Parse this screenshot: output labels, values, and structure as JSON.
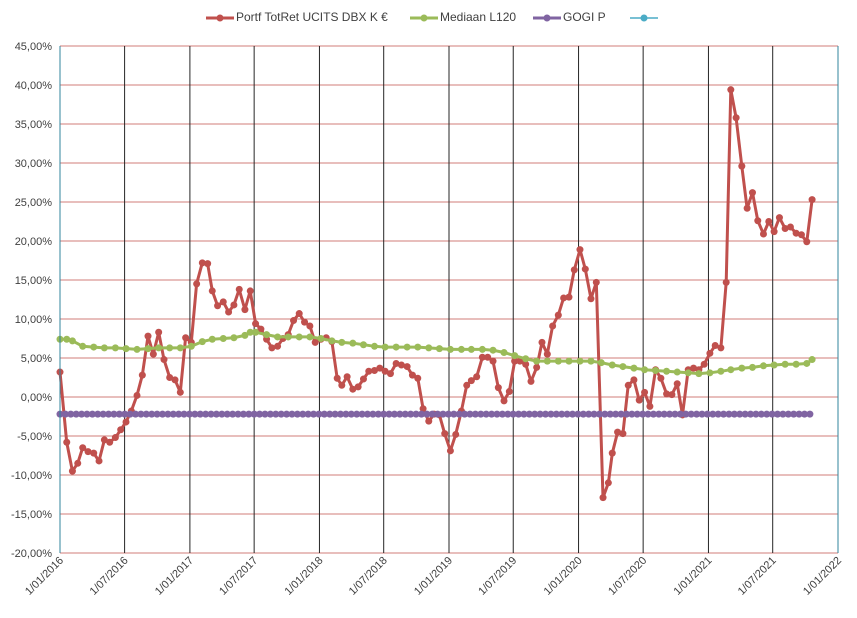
{
  "chart_data": {
    "type": "line",
    "legend_position": "top",
    "ylim": [
      -20,
      45
    ],
    "y_ticks": [
      "-20,00%",
      "-15,00%",
      "-10,00%",
      "-5,00%",
      "0,00%",
      "5,00%",
      "10,00%",
      "15,00%",
      "20,00%",
      "25,00%",
      "30,00%",
      "35,00%",
      "40,00%",
      "45,00%"
    ],
    "x_range": [
      "2016-01-01",
      "2022-01-01"
    ],
    "x_ticks": [
      "1/01/2016",
      "1/07/2016",
      "1/01/2017",
      "1/07/2017",
      "1/01/2018",
      "1/07/2018",
      "1/01/2019",
      "1/07/2019",
      "1/01/2020",
      "1/07/2020",
      "1/01/2021",
      "1/07/2021",
      "1/01/2022"
    ],
    "grid": true,
    "series": [
      {
        "name": "Portf TotRet UCITS DBX K €",
        "color": "#c0504d",
        "points": [
          [
            "2016-01-01",
            3.2
          ],
          [
            "2016-01-20",
            -5.8
          ],
          [
            "2016-02-05",
            -9.5
          ],
          [
            "2016-02-20",
            -8.5
          ],
          [
            "2016-03-05",
            -6.5
          ],
          [
            "2016-03-20",
            -7.0
          ],
          [
            "2016-04-05",
            -7.2
          ],
          [
            "2016-04-20",
            -8.2
          ],
          [
            "2016-05-05",
            -5.5
          ],
          [
            "2016-05-20",
            -5.8
          ],
          [
            "2016-06-05",
            -5.2
          ],
          [
            "2016-06-20",
            -4.2
          ],
          [
            "2016-07-05",
            -3.2
          ],
          [
            "2016-07-20",
            -1.8
          ],
          [
            "2016-08-05",
            0.2
          ],
          [
            "2016-08-20",
            2.8
          ],
          [
            "2016-09-05",
            7.8
          ],
          [
            "2016-09-20",
            5.5
          ],
          [
            "2016-10-05",
            8.3
          ],
          [
            "2016-10-20",
            4.8
          ],
          [
            "2016-11-05",
            2.5
          ],
          [
            "2016-11-20",
            2.2
          ],
          [
            "2016-12-05",
            0.6
          ],
          [
            "2016-12-20",
            7.6
          ],
          [
            "2017-01-05",
            7.0
          ],
          [
            "2017-01-20",
            14.5
          ],
          [
            "2017-02-05",
            17.2
          ],
          [
            "2017-02-20",
            17.1
          ],
          [
            "2017-03-05",
            13.6
          ],
          [
            "2017-03-20",
            11.7
          ],
          [
            "2017-04-05",
            12.2
          ],
          [
            "2017-04-20",
            10.9
          ],
          [
            "2017-05-05",
            11.8
          ],
          [
            "2017-05-20",
            13.8
          ],
          [
            "2017-06-05",
            11.2
          ],
          [
            "2017-06-20",
            13.6
          ],
          [
            "2017-07-05",
            9.4
          ],
          [
            "2017-07-20",
            8.7
          ],
          [
            "2017-08-05",
            7.4
          ],
          [
            "2017-08-20",
            6.3
          ],
          [
            "2017-09-05",
            6.5
          ],
          [
            "2017-09-20",
            7.5
          ],
          [
            "2017-10-05",
            8.0
          ],
          [
            "2017-10-20",
            9.8
          ],
          [
            "2017-11-05",
            10.7
          ],
          [
            "2017-11-20",
            9.6
          ],
          [
            "2017-12-05",
            9.1
          ],
          [
            "2017-12-20",
            7.0
          ],
          [
            "2018-01-05",
            7.4
          ],
          [
            "2018-01-20",
            7.6
          ],
          [
            "2018-02-05",
            7.1
          ],
          [
            "2018-02-20",
            2.4
          ],
          [
            "2018-03-05",
            1.5
          ],
          [
            "2018-03-20",
            2.6
          ],
          [
            "2018-04-05",
            1.0
          ],
          [
            "2018-04-20",
            1.3
          ],
          [
            "2018-05-05",
            2.3
          ],
          [
            "2018-05-20",
            3.3
          ],
          [
            "2018-06-05",
            3.4
          ],
          [
            "2018-06-20",
            3.7
          ],
          [
            "2018-07-05",
            3.3
          ],
          [
            "2018-07-20",
            3.0
          ],
          [
            "2018-08-05",
            4.3
          ],
          [
            "2018-08-20",
            4.1
          ],
          [
            "2018-09-05",
            3.9
          ],
          [
            "2018-09-20",
            2.8
          ],
          [
            "2018-10-05",
            2.4
          ],
          [
            "2018-10-20",
            -1.5
          ],
          [
            "2018-11-05",
            -3.1
          ],
          [
            "2018-11-20",
            -2.2
          ],
          [
            "2018-12-05",
            -2.3
          ],
          [
            "2018-12-20",
            -4.7
          ],
          [
            "2019-01-05",
            -6.9
          ],
          [
            "2019-01-20",
            -4.8
          ],
          [
            "2019-02-05",
            -1.8
          ],
          [
            "2019-02-20",
            1.5
          ],
          [
            "2019-03-05",
            2.1
          ],
          [
            "2019-03-20",
            2.6
          ],
          [
            "2019-04-05",
            5.1
          ],
          [
            "2019-04-20",
            5.1
          ],
          [
            "2019-05-05",
            4.6
          ],
          [
            "2019-05-20",
            1.2
          ],
          [
            "2019-06-05",
            -0.5
          ],
          [
            "2019-06-20",
            0.7
          ],
          [
            "2019-07-05",
            4.6
          ],
          [
            "2019-07-20",
            4.6
          ],
          [
            "2019-08-05",
            4.2
          ],
          [
            "2019-08-20",
            2.0
          ],
          [
            "2019-09-05",
            3.8
          ],
          [
            "2019-09-20",
            7.0
          ],
          [
            "2019-10-05",
            5.5
          ],
          [
            "2019-10-20",
            9.1
          ],
          [
            "2019-11-05",
            10.5
          ],
          [
            "2019-11-20",
            12.7
          ],
          [
            "2019-12-05",
            12.8
          ],
          [
            "2019-12-20",
            16.3
          ],
          [
            "2020-01-05",
            18.9
          ],
          [
            "2020-01-20",
            16.4
          ],
          [
            "2020-02-05",
            12.6
          ],
          [
            "2020-02-20",
            14.7
          ],
          [
            "2020-03-10",
            -12.9
          ],
          [
            "2020-03-25",
            -11.0
          ],
          [
            "2020-04-05",
            -7.2
          ],
          [
            "2020-04-20",
            -4.5
          ],
          [
            "2020-05-05",
            -4.7
          ],
          [
            "2020-05-20",
            1.5
          ],
          [
            "2020-06-05",
            2.2
          ],
          [
            "2020-06-20",
            -0.4
          ],
          [
            "2020-07-05",
            0.6
          ],
          [
            "2020-07-20",
            -1.2
          ],
          [
            "2020-08-05",
            3.5
          ],
          [
            "2020-08-20",
            2.4
          ],
          [
            "2020-09-05",
            0.4
          ],
          [
            "2020-09-20",
            0.3
          ],
          [
            "2020-10-05",
            1.7
          ],
          [
            "2020-10-20",
            -2.3
          ],
          [
            "2020-11-05",
            3.5
          ],
          [
            "2020-11-20",
            3.7
          ],
          [
            "2020-12-05",
            3.5
          ],
          [
            "2020-12-20",
            4.2
          ],
          [
            "2021-01-05",
            5.6
          ],
          [
            "2021-01-20",
            6.6
          ],
          [
            "2021-02-05",
            6.3
          ],
          [
            "2021-02-20",
            14.7
          ],
          [
            "2021-03-05",
            39.4
          ],
          [
            "2021-03-20",
            35.8
          ],
          [
            "2021-04-05",
            29.6
          ],
          [
            "2021-04-20",
            24.2
          ],
          [
            "2021-05-05",
            26.2
          ],
          [
            "2021-05-20",
            22.6
          ],
          [
            "2021-06-05",
            20.9
          ],
          [
            "2021-06-20",
            22.5
          ],
          [
            "2021-07-05",
            21.2
          ],
          [
            "2021-07-20",
            23.0
          ],
          [
            "2021-08-05",
            21.6
          ],
          [
            "2021-08-20",
            21.8
          ],
          [
            "2021-09-05",
            21.0
          ],
          [
            "2021-09-20",
            20.8
          ],
          [
            "2021-10-05",
            19.9
          ],
          [
            "2021-10-20",
            25.3
          ]
        ]
      },
      {
        "name": "Mediaan L120",
        "color": "#9bbb59",
        "points": [
          [
            "2016-01-01",
            7.4
          ],
          [
            "2016-01-20",
            7.4
          ],
          [
            "2016-02-05",
            7.2
          ],
          [
            "2016-03-05",
            6.5
          ],
          [
            "2016-04-05",
            6.4
          ],
          [
            "2016-05-05",
            6.3
          ],
          [
            "2016-06-05",
            6.3
          ],
          [
            "2016-07-05",
            6.2
          ],
          [
            "2016-08-05",
            6.1
          ],
          [
            "2016-09-05",
            6.2
          ],
          [
            "2016-10-05",
            6.3
          ],
          [
            "2016-11-05",
            6.3
          ],
          [
            "2016-12-05",
            6.3
          ],
          [
            "2017-01-05",
            6.5
          ],
          [
            "2017-02-05",
            7.1
          ],
          [
            "2017-03-05",
            7.4
          ],
          [
            "2017-04-05",
            7.5
          ],
          [
            "2017-05-05",
            7.6
          ],
          [
            "2017-06-05",
            7.9
          ],
          [
            "2017-06-20",
            8.3
          ],
          [
            "2017-07-05",
            8.3
          ],
          [
            "2017-08-05",
            8.0
          ],
          [
            "2017-09-05",
            7.7
          ],
          [
            "2017-10-05",
            7.7
          ],
          [
            "2017-11-05",
            7.7
          ],
          [
            "2017-12-05",
            7.7
          ],
          [
            "2018-01-05",
            7.5
          ],
          [
            "2018-02-05",
            7.2
          ],
          [
            "2018-03-05",
            7.0
          ],
          [
            "2018-04-05",
            6.9
          ],
          [
            "2018-05-05",
            6.7
          ],
          [
            "2018-06-05",
            6.5
          ],
          [
            "2018-07-05",
            6.4
          ],
          [
            "2018-08-05",
            6.4
          ],
          [
            "2018-09-05",
            6.4
          ],
          [
            "2018-10-05",
            6.4
          ],
          [
            "2018-11-05",
            6.3
          ],
          [
            "2018-12-05",
            6.2
          ],
          [
            "2019-01-05",
            6.1
          ],
          [
            "2019-02-05",
            6.1
          ],
          [
            "2019-03-05",
            6.1
          ],
          [
            "2019-04-05",
            6.1
          ],
          [
            "2019-05-05",
            6.0
          ],
          [
            "2019-06-05",
            5.7
          ],
          [
            "2019-07-05",
            5.3
          ],
          [
            "2019-08-05",
            4.9
          ],
          [
            "2019-09-05",
            4.6
          ],
          [
            "2019-10-05",
            4.6
          ],
          [
            "2019-11-05",
            4.6
          ],
          [
            "2019-12-05",
            4.6
          ],
          [
            "2020-01-05",
            4.6
          ],
          [
            "2020-02-05",
            4.6
          ],
          [
            "2020-03-05",
            4.4
          ],
          [
            "2020-04-05",
            4.1
          ],
          [
            "2020-05-05",
            3.9
          ],
          [
            "2020-06-05",
            3.7
          ],
          [
            "2020-07-05",
            3.5
          ],
          [
            "2020-08-05",
            3.4
          ],
          [
            "2020-09-05",
            3.3
          ],
          [
            "2020-10-05",
            3.2
          ],
          [
            "2020-11-05",
            3.1
          ],
          [
            "2020-12-05",
            3.0
          ],
          [
            "2021-01-05",
            3.1
          ],
          [
            "2021-02-05",
            3.3
          ],
          [
            "2021-03-05",
            3.5
          ],
          [
            "2021-04-05",
            3.7
          ],
          [
            "2021-05-05",
            3.8
          ],
          [
            "2021-06-05",
            4.0
          ],
          [
            "2021-07-05",
            4.1
          ],
          [
            "2021-08-05",
            4.2
          ],
          [
            "2021-09-05",
            4.2
          ],
          [
            "2021-10-05",
            4.3
          ],
          [
            "2021-10-20",
            4.8
          ]
        ]
      },
      {
        "name": "GOGI P",
        "color": "#8064a2",
        "points": [
          [
            "2016-01-01",
            -2.2
          ],
          [
            "2021-10-20",
            -2.2
          ]
        ]
      },
      {
        "name": "",
        "color": "#4bacc6",
        "points": []
      }
    ]
  }
}
